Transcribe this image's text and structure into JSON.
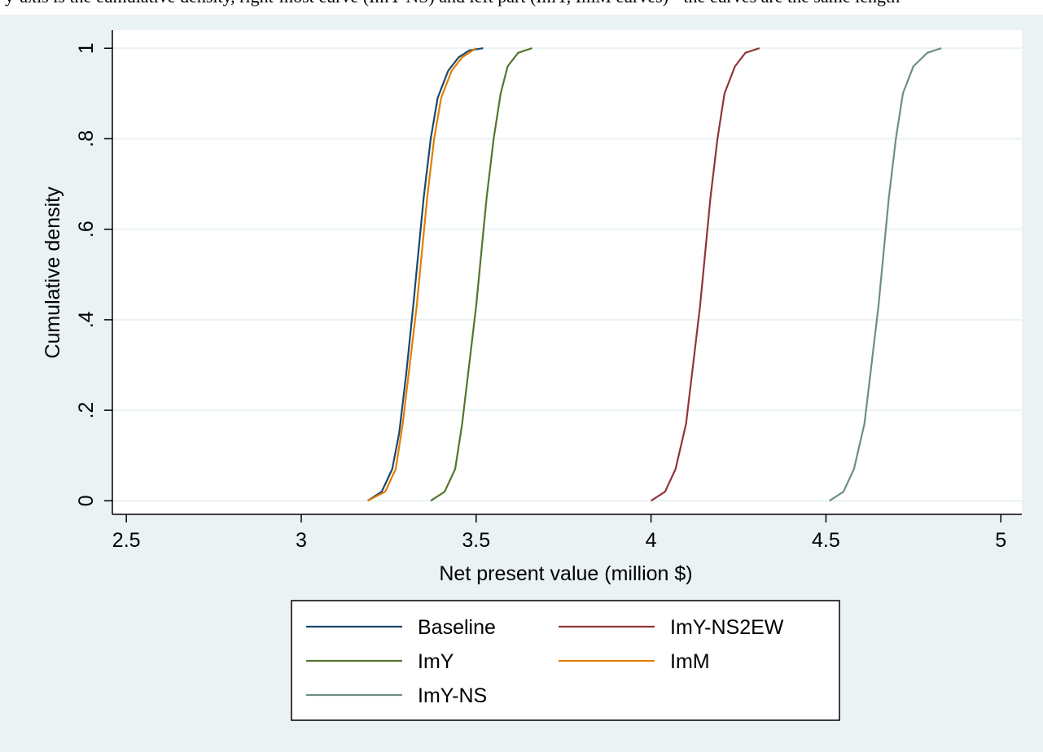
{
  "header_text": "y-axis is the cumulative density, right-most curve (ImY-NS) and left part (ImY, ImM curves) - the curves are the same length",
  "colors": {
    "background": "#eaf2f3",
    "plot_background": "#ffffff",
    "grid": "#eaf2f3",
    "Baseline": "#1a476f",
    "ImY": "#55752f",
    "ImM": "#e37e00",
    "ImY-NS2EW": "#90353b",
    "ImY-NS": "#6e8e84"
  },
  "chart_data": {
    "type": "line",
    "title": "",
    "xlabel": "Net present value (million $)",
    "ylabel": "Cumulative density",
    "xlim": [
      2.46,
      5.06
    ],
    "ylim": [
      -0.03,
      1.04
    ],
    "x_ticks": [
      2.5,
      3,
      3.5,
      4,
      4.5,
      5
    ],
    "x_tick_labels": [
      "2.5",
      "3",
      "3.5",
      "4",
      "4.5",
      "5"
    ],
    "y_ticks": [
      0,
      0.2,
      0.4,
      0.6,
      0.8,
      1
    ],
    "y_tick_labels": [
      "0",
      ".2",
      ".4",
      ".6",
      ".8",
      "1"
    ],
    "grid": true,
    "legend_position": "bottom",
    "series": [
      {
        "name": "Baseline",
        "color": "#1a476f",
        "x": [
          3.19,
          3.23,
          3.26,
          3.28,
          3.3,
          3.32,
          3.335,
          3.35,
          3.37,
          3.39,
          3.42,
          3.45,
          3.48,
          3.52
        ],
        "y": [
          0,
          0.02,
          0.07,
          0.15,
          0.28,
          0.43,
          0.55,
          0.67,
          0.8,
          0.89,
          0.95,
          0.98,
          0.995,
          1
        ]
      },
      {
        "name": "ImY-NS2EW",
        "color": "#90353b",
        "x": [
          4.0,
          4.04,
          4.07,
          4.1,
          4.12,
          4.14,
          4.155,
          4.17,
          4.19,
          4.21,
          4.24,
          4.27,
          4.31
        ],
        "y": [
          0,
          0.02,
          0.07,
          0.17,
          0.3,
          0.43,
          0.55,
          0.67,
          0.8,
          0.9,
          0.96,
          0.99,
          1
        ]
      },
      {
        "name": "ImY",
        "color": "#55752f",
        "x": [
          3.37,
          3.41,
          3.44,
          3.46,
          3.48,
          3.5,
          3.515,
          3.53,
          3.55,
          3.57,
          3.59,
          3.62,
          3.66
        ],
        "y": [
          0,
          0.02,
          0.07,
          0.17,
          0.3,
          0.43,
          0.55,
          0.67,
          0.8,
          0.9,
          0.96,
          0.99,
          1
        ]
      },
      {
        "name": "ImM",
        "color": "#e37e00",
        "x": [
          3.19,
          3.24,
          3.27,
          3.29,
          3.31,
          3.33,
          3.345,
          3.36,
          3.38,
          3.4,
          3.43,
          3.46,
          3.5
        ],
        "y": [
          0,
          0.02,
          0.07,
          0.17,
          0.3,
          0.43,
          0.55,
          0.67,
          0.8,
          0.89,
          0.95,
          0.98,
          1
        ]
      },
      {
        "name": "ImY-NS",
        "color": "#6e8e84",
        "x": [
          4.51,
          4.55,
          4.58,
          4.61,
          4.63,
          4.65,
          4.665,
          4.68,
          4.7,
          4.72,
          4.75,
          4.79,
          4.83
        ],
        "y": [
          0,
          0.02,
          0.07,
          0.17,
          0.3,
          0.43,
          0.55,
          0.67,
          0.8,
          0.9,
          0.96,
          0.99,
          1
        ]
      }
    ]
  }
}
